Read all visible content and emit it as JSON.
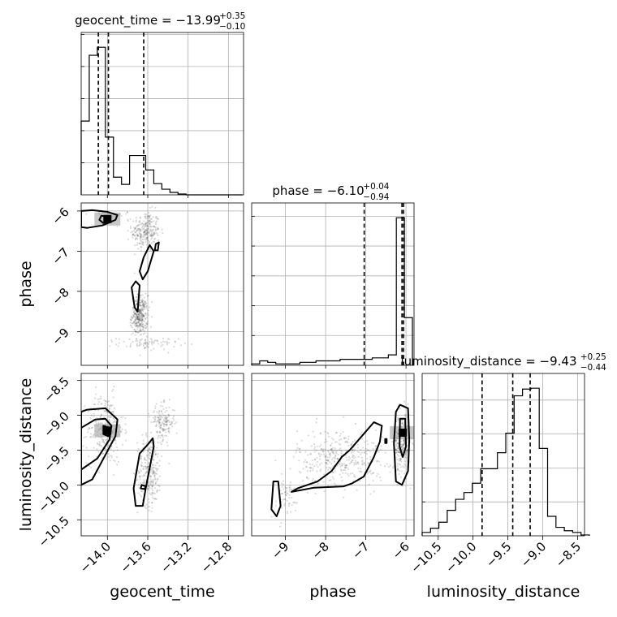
{
  "chart_data": {
    "type": "scatter",
    "subtype": "corner-plot",
    "parameters": [
      {
        "label": "geocent_time",
        "title": {
          "prefix": "geocent_time = ",
          "median": "−13.99",
          "plus": "+0.35",
          "minus": "−0.10"
        },
        "range": [
          -14.26,
          -12.65
        ],
        "ticks": [
          -14.0,
          -13.6,
          -13.2,
          -12.8
        ],
        "tick_labels": [
          "−14.0",
          "−13.6",
          "−13.2",
          "−12.8"
        ],
        "quantiles": [
          -14.09,
          -13.99,
          -13.64
        ]
      },
      {
        "label": "phase",
        "title": {
          "prefix": "phase = ",
          "median": "−6.10",
          "plus": "+0.04",
          "minus": "−0.94"
        },
        "range": [
          -9.84,
          -5.8
        ],
        "ticks": [
          -9,
          -8,
          -7,
          -6
        ],
        "tick_labels": [
          "−9",
          "−8",
          "−7",
          "−6"
        ],
        "quantiles": [
          -7.04,
          -6.1,
          -6.06
        ]
      },
      {
        "label": "luminosity_distance",
        "title": {
          "prefix": "luminosity_distance = ",
          "median": "−9.43",
          "plus": "+0.25",
          "minus": "−0.44"
        },
        "range": [
          -10.73,
          -8.4
        ],
        "ticks": [
          -10.5,
          -10.0,
          -9.5,
          -9.0,
          -8.5
        ],
        "tick_labels": [
          "−10.5",
          "−10.0",
          "−9.5",
          "−9.0",
          "−8.5"
        ],
        "quantiles": [
          -9.87,
          -9.43,
          -9.18
        ]
      }
    ],
    "histograms": [
      {
        "param": "geocent_time",
        "bins": [
          -14.26,
          -14.18,
          -14.1,
          -14.02,
          -13.94,
          -13.86,
          -13.78,
          -13.7,
          -13.62,
          -13.54,
          -13.46,
          -13.38,
          -13.3,
          -13.22,
          -13.14,
          -13.06,
          -12.98,
          -12.9,
          -12.82,
          -12.74,
          -12.66
        ],
        "counts": [
          92,
          174,
          184,
          72,
          22,
          13,
          49,
          49,
          31,
          14,
          7,
          3,
          1,
          0,
          0,
          0,
          0,
          0,
          0,
          0
        ]
      },
      {
        "param": "phase",
        "bins": [
          -9.84,
          -9.64,
          -9.44,
          -9.24,
          -9.04,
          -8.84,
          -8.64,
          -8.44,
          -8.24,
          -8.04,
          -7.84,
          -7.64,
          -7.44,
          -7.24,
          -7.04,
          -6.84,
          -6.64,
          -6.44,
          -6.24,
          -6.04,
          -5.84
        ],
        "counts": [
          1,
          3,
          2,
          1,
          1,
          1,
          2,
          2,
          3,
          3,
          3,
          4,
          4,
          4,
          4,
          5,
          5,
          7,
          99,
          32
        ]
      },
      {
        "param": "luminosity_distance",
        "bins": [
          -10.73,
          -10.61,
          -10.49,
          -10.37,
          -10.25,
          -10.13,
          -10.01,
          -9.89,
          -9.77,
          -9.65,
          -9.53,
          -9.41,
          -9.29,
          -9.17,
          -9.05,
          -8.93,
          -8.81,
          -8.69,
          -8.57,
          -8.45,
          -8.33
        ],
        "counts": [
          4,
          9,
          16,
          30,
          43,
          51,
          62,
          79,
          79,
          98,
          121,
          165,
          173,
          174,
          103,
          23,
          10,
          6,
          4,
          1
        ]
      }
    ],
    "pairs": [
      {
        "x": "geocent_time",
        "y": "phase",
        "density_peaks": [
          [
            -14.0,
            -6.2
          ]
        ],
        "contours": [
          [
            [
              -14.26,
              -6.0
            ],
            [
              -14.15,
              -5.98
            ],
            [
              -14.0,
              -6.02
            ],
            [
              -13.9,
              -6.1
            ],
            [
              -13.92,
              -6.22
            ],
            [
              -14.05,
              -6.36
            ],
            [
              -14.2,
              -6.42
            ],
            [
              -14.26,
              -6.4
            ]
          ],
          [
            [
              -14.06,
              -6.12
            ],
            [
              -13.98,
              -6.14
            ],
            [
              -13.97,
              -6.26
            ],
            [
              -14.04,
              -6.3
            ],
            [
              -14.08,
              -6.22
            ]
          ],
          [
            [
              -13.58,
              -6.85
            ],
            [
              -13.54,
              -7.0
            ],
            [
              -13.6,
              -7.5
            ],
            [
              -13.65,
              -7.7
            ],
            [
              -13.68,
              -7.5
            ],
            [
              -13.64,
              -7.15
            ]
          ],
          [
            [
              -13.52,
              -6.82
            ],
            [
              -13.49,
              -6.78
            ],
            [
              -13.5,
              -6.98
            ],
            [
              -13.53,
              -6.98
            ]
          ],
          [
            [
              -13.72,
              -7.75
            ],
            [
              -13.68,
              -7.85
            ],
            [
              -13.7,
              -8.5
            ],
            [
              -13.73,
              -8.4
            ],
            [
              -13.76,
              -7.9
            ]
          ]
        ],
        "points": [
          [
            -14.0,
            -6.1,
            0.3,
            0.1,
            30
          ],
          [
            -13.62,
            -6.5,
            0.14,
            0.5,
            260
          ],
          [
            -13.68,
            -8.6,
            0.08,
            0.5,
            330
          ],
          [
            -13.6,
            -9.3,
            0.3,
            0.15,
            80
          ]
        ]
      },
      {
        "x": "geocent_time",
        "y": "luminosity_distance",
        "density_peaks": [
          [
            -14.0,
            -9.22
          ]
        ],
        "contours": [
          [
            [
              -14.26,
              -8.95
            ],
            [
              -14.2,
              -8.92
            ],
            [
              -14.02,
              -8.9
            ],
            [
              -13.9,
              -9.06
            ],
            [
              -13.92,
              -9.3
            ],
            [
              -14.05,
              -9.65
            ],
            [
              -14.15,
              -9.92
            ],
            [
              -14.26,
              -10.0
            ]
          ],
          [
            [
              -14.26,
              -9.18
            ],
            [
              -14.12,
              -9.06
            ],
            [
              -14.02,
              -9.05
            ],
            [
              -13.96,
              -9.15
            ],
            [
              -13.98,
              -9.35
            ],
            [
              -14.1,
              -9.62
            ],
            [
              -14.26,
              -9.78
            ]
          ],
          [
            [
              -14.04,
              -9.15
            ],
            [
              -13.98,
              -9.18
            ],
            [
              -13.99,
              -9.3
            ],
            [
              -14.04,
              -9.27
            ]
          ],
          [
            [
              -13.68,
              -9.55
            ],
            [
              -13.6,
              -9.42
            ],
            [
              -13.55,
              -9.33
            ],
            [
              -13.54,
              -9.45
            ],
            [
              -13.58,
              -9.75
            ],
            [
              -13.62,
              -10.05
            ],
            [
              -13.65,
              -10.3
            ],
            [
              -13.72,
              -10.3
            ],
            [
              -13.74,
              -10.05
            ]
          ],
          [
            [
              -13.66,
              -10.0
            ],
            [
              -13.62,
              -10.02
            ],
            [
              -13.63,
              -10.06
            ],
            [
              -13.67,
              -10.05
            ]
          ]
        ],
        "points": [
          [
            -14.02,
            -9.2,
            0.18,
            0.5,
            300
          ],
          [
            -13.58,
            -9.8,
            0.12,
            0.5,
            260
          ],
          [
            -13.45,
            -9.1,
            0.12,
            0.25,
            160
          ]
        ]
      },
      {
        "x": "phase",
        "y": "luminosity_distance",
        "density_peaks": [
          [
            -6.08,
            -9.25
          ]
        ],
        "contours": [
          [
            [
              -6.25,
              -8.95
            ],
            [
              -6.15,
              -8.85
            ],
            [
              -5.95,
              -8.9
            ],
            [
              -5.92,
              -9.35
            ],
            [
              -5.95,
              -9.8
            ],
            [
              -6.1,
              -10.0
            ],
            [
              -6.25,
              -9.95
            ],
            [
              -6.3,
              -9.4
            ]
          ],
          [
            [
              -6.15,
              -9.05
            ],
            [
              -6.02,
              -9.05
            ],
            [
              -6.0,
              -9.45
            ],
            [
              -6.08,
              -9.6
            ],
            [
              -6.16,
              -9.45
            ]
          ],
          [
            [
              -9.35,
              -10.35
            ],
            [
              -9.3,
              -9.95
            ],
            [
              -9.18,
              -9.95
            ],
            [
              -9.12,
              -10.3
            ],
            [
              -9.22,
              -10.45
            ]
          ],
          [
            [
              -8.7,
              -10.05
            ],
            [
              -8.2,
              -9.95
            ],
            [
              -7.85,
              -9.8
            ],
            [
              -7.6,
              -9.6
            ],
            [
              -7.4,
              -9.5
            ],
            [
              -7.1,
              -9.3
            ],
            [
              -6.8,
              -9.1
            ],
            [
              -6.6,
              -9.15
            ],
            [
              -6.65,
              -9.38
            ],
            [
              -6.8,
              -9.6
            ],
            [
              -7.05,
              -9.88
            ],
            [
              -7.35,
              -9.98
            ],
            [
              -7.55,
              -10.02
            ],
            [
              -8.3,
              -10.04
            ],
            [
              -8.85,
              -10.1
            ]
          ],
          [
            [
              -6.52,
              -9.34
            ],
            [
              -6.48,
              -9.34
            ],
            [
              -6.48,
              -9.4
            ],
            [
              -6.52,
              -9.4
            ]
          ]
        ],
        "points": [
          [
            -6.1,
            -9.4,
            0.2,
            0.45,
            260
          ],
          [
            -7.6,
            -9.6,
            1.1,
            0.4,
            380
          ],
          [
            -9.0,
            -10.2,
            0.4,
            0.3,
            60
          ]
        ]
      }
    ],
    "grid": true,
    "legend": "none"
  }
}
